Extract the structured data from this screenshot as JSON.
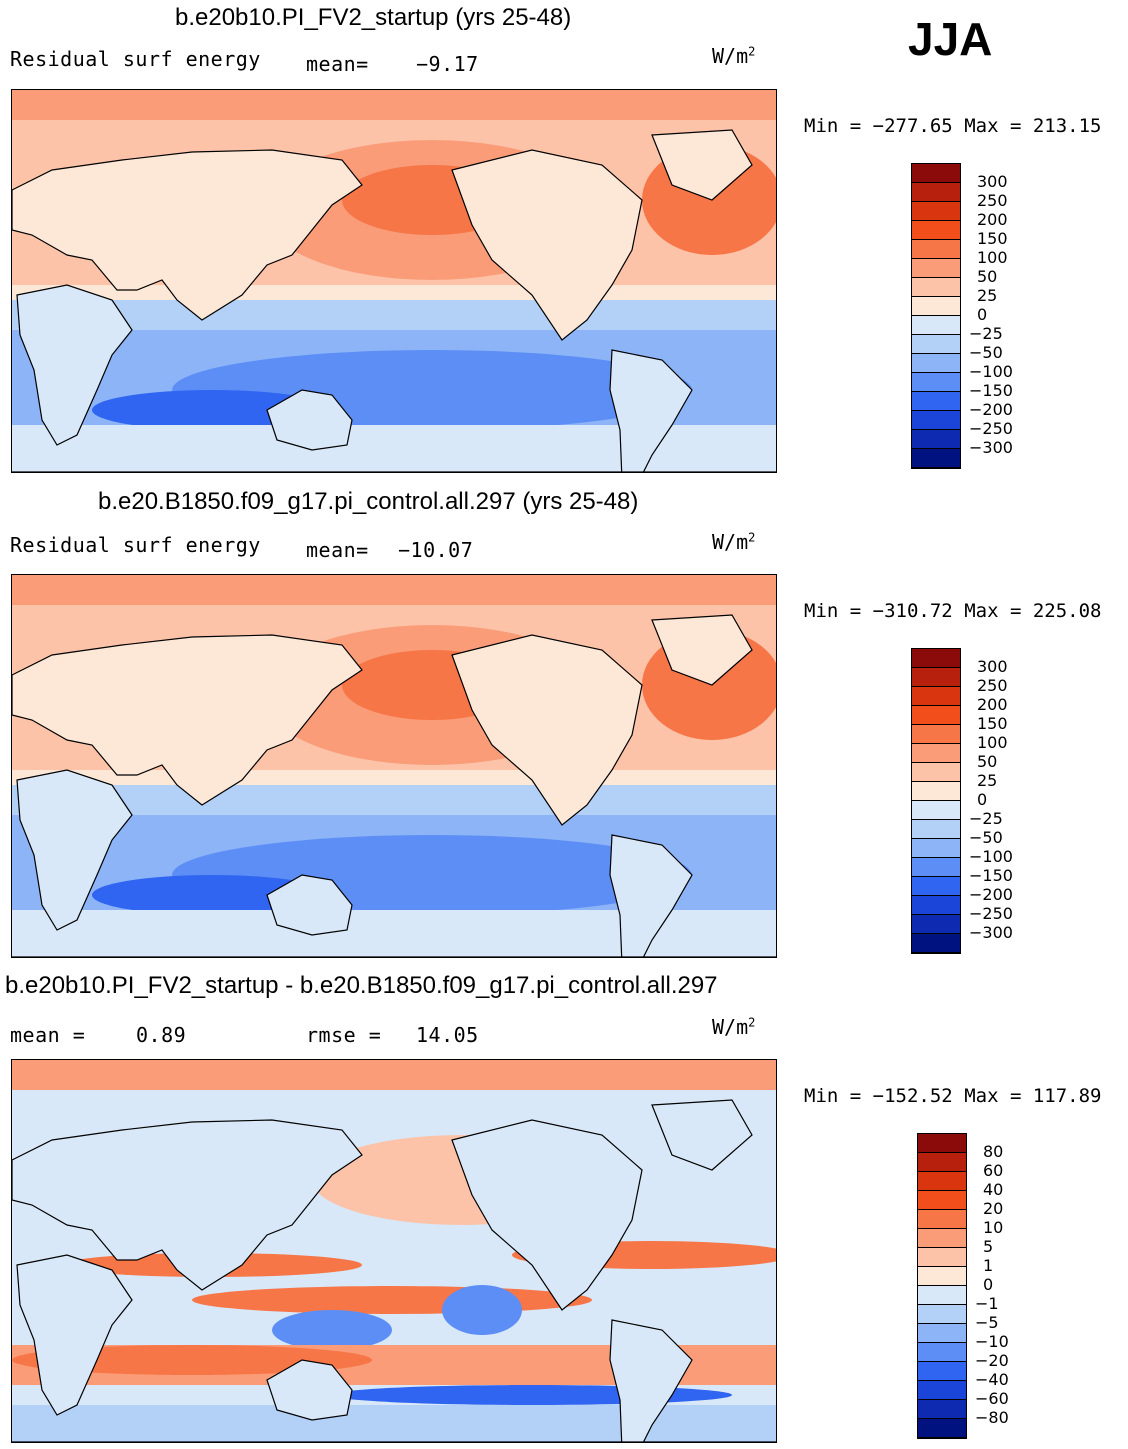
{
  "season": "JJA",
  "units_text": "W/m",
  "units_sup": "2",
  "panels": [
    {
      "title": "b.e20b10.PI_FV2_startup (yrs 25-48)",
      "left_label": "Residual surf energy",
      "stat_label": "mean=",
      "stat_value": "-9.17",
      "min_label": "Min",
      "min_value": "-277.65",
      "max_label": "Max",
      "max_value": "213.15",
      "colorbar_levels": [
        "300",
        "250",
        "200",
        "150",
        "100",
        "50",
        "25",
        "0",
        "-25",
        "-50",
        "-100",
        "-150",
        "-200",
        "-250",
        "-300"
      ]
    },
    {
      "title": "b.e20.B1850.f09_g17.pi_control.all.297 (yrs 25-48)",
      "left_label": "Residual surf energy",
      "stat_label": "mean=",
      "stat_value": "-10.07",
      "min_label": "Min",
      "min_value": "-310.72",
      "max_label": "Max",
      "max_value": "225.08",
      "colorbar_levels": [
        "300",
        "250",
        "200",
        "150",
        "100",
        "50",
        "25",
        "0",
        "-25",
        "-50",
        "-100",
        "-150",
        "-200",
        "-250",
        "-300"
      ]
    },
    {
      "title": "b.e20b10.PI_FV2_startup - b.e20.B1850.f09_g17.pi_control.all.297",
      "left_label": "mean =",
      "left_value": "0.89",
      "stat_label": "rmse =",
      "stat_value": "14.05",
      "min_label": "Min",
      "min_value": "-152.52",
      "max_label": "Max",
      "max_value": "117.89",
      "colorbar_levels": [
        "80",
        "60",
        "40",
        "20",
        "10",
        "5",
        "1",
        "0",
        "-1",
        "-5",
        "-10",
        "-20",
        "-40",
        "-60",
        "-80"
      ]
    }
  ],
  "colors": {
    "scale": [
      "#8b0a0a",
      "#b8200e",
      "#d9350f",
      "#f24e1c",
      "#f77648",
      "#fa9c78",
      "#fcc3a8",
      "#fde8d8",
      "#d8e8f8",
      "#b3d0f7",
      "#8cb4f7",
      "#5c8ef5",
      "#2f65f0",
      "#1a45d8",
      "#0d2ab0",
      "#00127f"
    ],
    "land": "#fde8d8",
    "coast": "#000000"
  },
  "chart_data": [
    {
      "type": "heatmap",
      "title": "b.e20b10.PI_FV2_startup (yrs 25-48)",
      "variable": "Residual surf energy",
      "units": "W/m2",
      "season": "JJA",
      "mean": -9.17,
      "min": -277.65,
      "max": 213.15,
      "levels": [
        -300,
        -250,
        -200,
        -150,
        -100,
        -50,
        -25,
        0,
        25,
        50,
        100,
        150,
        200,
        250,
        300
      ],
      "pattern": "positive over northern oceans, negative over southern oceans"
    },
    {
      "type": "heatmap",
      "title": "b.e20.B1850.f09_g17.pi_control.all.297 (yrs 25-48)",
      "variable": "Residual surf energy",
      "units": "W/m2",
      "season": "JJA",
      "mean": -10.07,
      "min": -310.72,
      "max": 225.08,
      "levels": [
        -300,
        -250,
        -200,
        -150,
        -100,
        -50,
        -25,
        0,
        25,
        50,
        100,
        150,
        200,
        250,
        300
      ],
      "pattern": "positive over northern oceans, negative over southern oceans"
    },
    {
      "type": "heatmap",
      "title": "b.e20b10.PI_FV2_startup - b.e20.B1850.f09_g17.pi_control.all.297",
      "units": "W/m2",
      "season": "JJA",
      "mean": 0.89,
      "rmse": 14.05,
      "min": -152.52,
      "max": 117.89,
      "levels": [
        -80,
        -60,
        -40,
        -20,
        -10,
        -5,
        -1,
        0,
        1,
        5,
        10,
        20,
        40,
        60,
        80
      ],
      "pattern": "mixed positive and negative bands"
    }
  ]
}
